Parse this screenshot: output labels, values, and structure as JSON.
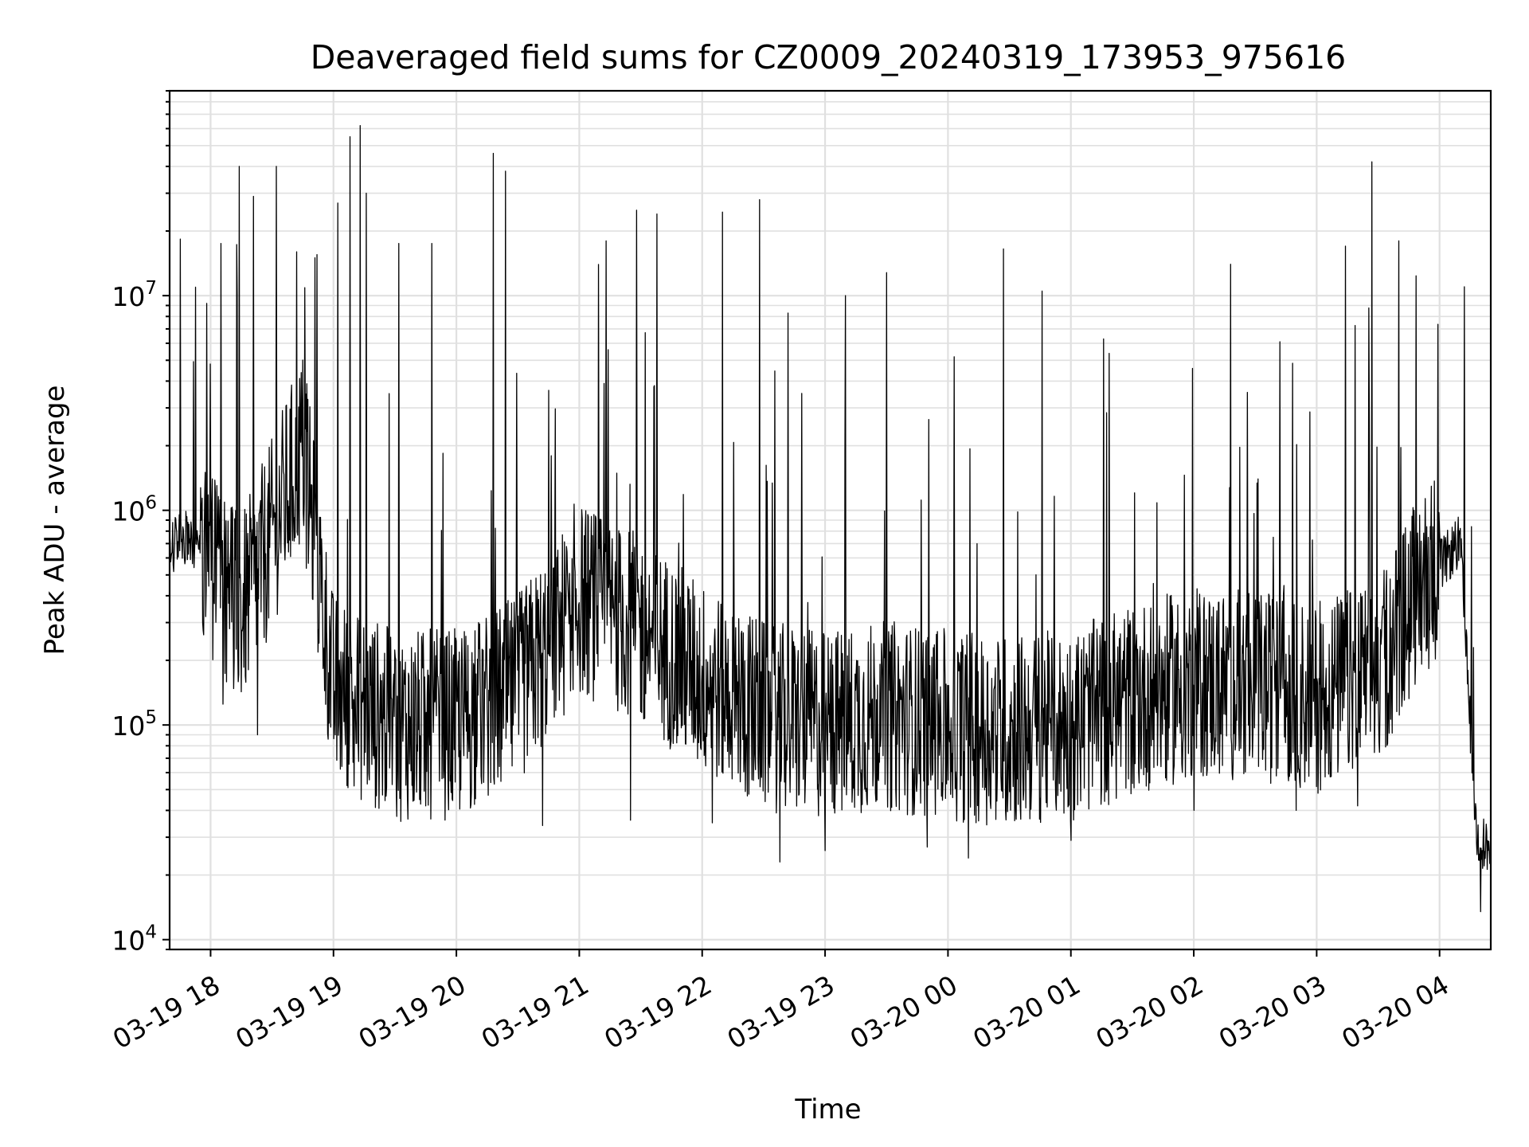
{
  "chart_data": {
    "type": "line",
    "title": "Deaveraged field sums for CZ0009_20240319_173953_975616",
    "xlabel": "Time",
    "ylabel": "Peak ADU - average",
    "y_scale": "log",
    "ylim": [
      9000,
      90000000
    ],
    "xlim": [
      "2024-03-19 17:40",
      "2024-03-20 04:25"
    ],
    "grid": true,
    "grid_minor": true,
    "line_color": "#000000",
    "x_ticks": [
      {
        "t": "2024-03-19 18:00",
        "label": "03-19 18"
      },
      {
        "t": "2024-03-19 19:00",
        "label": "03-19 19"
      },
      {
        "t": "2024-03-19 20:00",
        "label": "03-19 20"
      },
      {
        "t": "2024-03-19 21:00",
        "label": "03-19 21"
      },
      {
        "t": "2024-03-19 22:00",
        "label": "03-19 22"
      },
      {
        "t": "2024-03-19 23:00",
        "label": "03-19 23"
      },
      {
        "t": "2024-03-20 00:00",
        "label": "03-20 00"
      },
      {
        "t": "2024-03-20 01:00",
        "label": "03-20 01"
      },
      {
        "t": "2024-03-20 02:00",
        "label": "03-20 02"
      },
      {
        "t": "2024-03-20 03:00",
        "label": "03-20 03"
      },
      {
        "t": "2024-03-20 04:00",
        "label": "03-20 04"
      }
    ],
    "y_ticks": [
      {
        "value": 10000,
        "base": "10",
        "exp": "4"
      },
      {
        "value": 100000,
        "base": "10",
        "exp": "5"
      },
      {
        "value": 1000000,
        "base": "10",
        "exp": "6"
      },
      {
        "value": 10000000,
        "base": "10",
        "exp": "7"
      }
    ],
    "baseline": [
      [
        "2024-03-19 17:40",
        650000
      ],
      [
        "2024-03-19 17:50",
        750000
      ],
      [
        "2024-03-19 18:00",
        500000
      ],
      [
        "2024-03-19 18:15",
        300000
      ],
      [
        "2024-03-19 18:30",
        700000
      ],
      [
        "2024-03-19 18:45",
        1800000
      ],
      [
        "2024-03-19 19:00",
        130000
      ],
      [
        "2024-03-19 19:30",
        90000
      ],
      [
        "2024-03-19 20:00",
        90000
      ],
      [
        "2024-03-19 20:30",
        130000
      ],
      [
        "2024-03-19 21:00",
        350000
      ],
      [
        "2024-03-19 21:30",
        250000
      ],
      [
        "2024-03-19 22:00",
        150000
      ],
      [
        "2024-03-19 22:30",
        100000
      ],
      [
        "2024-03-19 23:00",
        90000
      ],
      [
        "2024-03-19 23:30",
        100000
      ],
      [
        "2024-03-20 00:00",
        90000
      ],
      [
        "2024-03-20 00:30",
        85000
      ],
      [
        "2024-03-20 01:00",
        90000
      ],
      [
        "2024-03-20 01:30",
        120000
      ],
      [
        "2024-03-20 02:00",
        140000
      ],
      [
        "2024-03-20 02:30",
        140000
      ],
      [
        "2024-03-20 03:00",
        120000
      ],
      [
        "2024-03-20 03:30",
        160000
      ],
      [
        "2024-03-20 03:50",
        400000
      ],
      [
        "2024-03-20 04:10",
        700000
      ],
      [
        "2024-03-20 04:18",
        30000
      ],
      [
        "2024-03-20 04:25",
        25000
      ]
    ],
    "spikes": [
      [
        "2024-03-19 17:58",
        9200000
      ],
      [
        "2024-03-19 18:05",
        17500000
      ],
      [
        "2024-03-19 18:14",
        40000000
      ],
      [
        "2024-03-19 18:21",
        29000000
      ],
      [
        "2024-03-19 18:32",
        40000000
      ],
      [
        "2024-03-19 18:42",
        16000000
      ],
      [
        "2024-03-19 18:51",
        15000000
      ],
      [
        "2024-03-19 19:02",
        27000000
      ],
      [
        "2024-03-19 19:08",
        55000000
      ],
      [
        "2024-03-19 19:13",
        62000000
      ],
      [
        "2024-03-19 19:16",
        30000000
      ],
      [
        "2024-03-19 19:32",
        17500000
      ],
      [
        "2024-03-19 19:48",
        17500000
      ],
      [
        "2024-03-19 20:18",
        46000000
      ],
      [
        "2024-03-19 20:24",
        38000000
      ],
      [
        "2024-03-19 21:13",
        18000000
      ],
      [
        "2024-03-19 21:28",
        25000000
      ],
      [
        "2024-03-19 21:38",
        24000000
      ],
      [
        "2024-03-19 22:10",
        24500000
      ],
      [
        "2024-03-19 22:28",
        28000000
      ],
      [
        "2024-03-19 22:42",
        8300000
      ],
      [
        "2024-03-19 23:10",
        10000000
      ],
      [
        "2024-03-19 23:30",
        12800000
      ],
      [
        "2024-03-20 00:27",
        16500000
      ],
      [
        "2024-03-20 00:46",
        10500000
      ],
      [
        "2024-03-20 02:18",
        14000000
      ],
      [
        "2024-03-20 02:42",
        6100000
      ],
      [
        "2024-03-20 03:14",
        17000000
      ],
      [
        "2024-03-20 03:27",
        42000000
      ],
      [
        "2024-03-20 03:40",
        18000000
      ],
      [
        "2024-03-20 04:12",
        11000000
      ]
    ],
    "dips": [
      [
        "2024-03-19 18:06",
        125000
      ],
      [
        "2024-03-19 18:23",
        90000
      ],
      [
        "2024-03-19 19:10",
        52000
      ],
      [
        "2024-03-19 19:45",
        42000
      ],
      [
        "2024-03-19 20:42",
        34000
      ],
      [
        "2024-03-19 21:25",
        36000
      ],
      [
        "2024-03-19 22:05",
        35000
      ],
      [
        "2024-03-19 22:38",
        23000
      ],
      [
        "2024-03-19 23:00",
        26000
      ],
      [
        "2024-03-19 23:50",
        27000
      ],
      [
        "2024-03-20 00:10",
        24000
      ],
      [
        "2024-03-20 01:00",
        29000
      ],
      [
        "2024-03-20 02:00",
        40000
      ],
      [
        "2024-03-20 02:50",
        40000
      ],
      [
        "2024-03-20 03:20",
        42000
      ],
      [
        "2024-03-20 04:20",
        13500
      ]
    ]
  }
}
